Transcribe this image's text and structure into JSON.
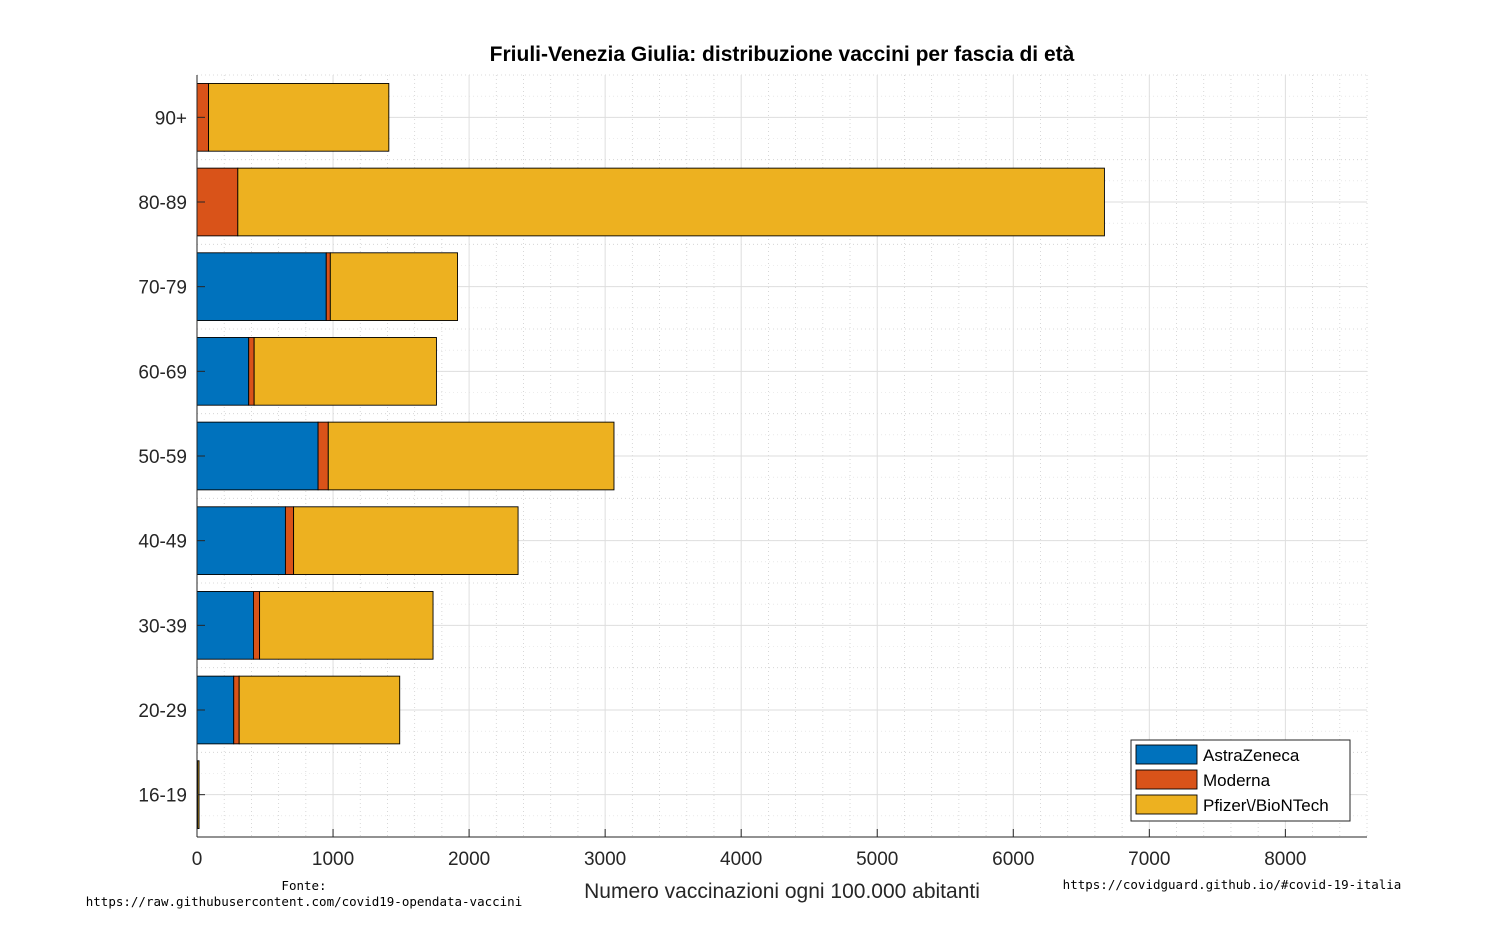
{
  "chart_data": {
    "type": "bar",
    "orientation": "horizontal",
    "stacked": true,
    "title": "Friuli-Venezia Giulia: distribuzione vaccini per fascia di età",
    "xlabel": "Numero vaccinazioni ogni 100.000 abitanti",
    "ylabel": "",
    "xlim": [
      0,
      8600
    ],
    "xticks": [
      "0",
      "1000",
      "2000",
      "3000",
      "4000",
      "5000",
      "6000",
      "7000",
      "8000"
    ],
    "grid": true,
    "legend_position": "bottom-right",
    "categories": [
      "90+",
      "80-89",
      "70-79",
      "60-69",
      "50-59",
      "40-49",
      "30-39",
      "20-29",
      "16-19"
    ],
    "series": [
      {
        "name": "AstraZeneca",
        "color": "#0072BD",
        "values": [
          0,
          0,
          950,
          380,
          890,
          650,
          415,
          270,
          0
        ]
      },
      {
        "name": "Moderna",
        "color": "#D95319",
        "values": [
          85,
          300,
          30,
          40,
          75,
          60,
          45,
          40,
          5
        ]
      },
      {
        "name": "Pfizer\\/BioNTech",
        "color": "#EDB120",
        "values": [
          1325,
          6370,
          935,
          1340,
          2100,
          1650,
          1275,
          1180,
          10
        ]
      }
    ]
  },
  "notes": {
    "source_label": "Fonte:",
    "source_url": "https://raw.githubusercontent.com/covid19-opendata-vaccini",
    "site_url": "https://covidguard.github.io/#covid-19-italia"
  }
}
